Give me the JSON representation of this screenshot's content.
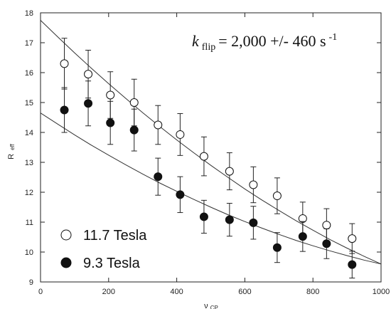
{
  "chart_data": {
    "type": "scatter",
    "title": "",
    "xlabel": "ν",
    "xlabel_sub": "CP",
    "ylabel": "R",
    "ylabel_sub": "eff",
    "xlim": [
      0,
      1000
    ],
    "ylim": [
      9,
      18
    ],
    "xticks": [
      0,
      200,
      400,
      600,
      800,
      1000
    ],
    "yticks": [
      9,
      10,
      11,
      12,
      13,
      14,
      15,
      16,
      17,
      18
    ],
    "grid": false,
    "legend_position": "bottom-left",
    "annotation": {
      "k": "k",
      "sub": "flip",
      "text": "= 2,000 +/- 460 s",
      "sup": "-1"
    },
    "series": [
      {
        "name": "11.7 Tesla",
        "marker": "open-circle",
        "x": [
          70,
          140,
          205,
          275,
          345,
          410,
          480,
          555,
          625,
          695,
          770,
          840,
          915
        ],
        "y": [
          16.3,
          15.95,
          15.25,
          15.0,
          14.25,
          13.93,
          13.2,
          12.7,
          12.25,
          11.88,
          11.12,
          10.9,
          10.45
        ],
        "err": [
          0.85,
          0.8,
          0.78,
          0.78,
          0.65,
          0.7,
          0.65,
          0.62,
          0.6,
          0.6,
          0.55,
          0.55,
          0.5
        ],
        "fit_x": [
          0,
          50,
          100,
          150,
          200,
          250,
          300,
          350,
          400,
          450,
          500,
          550,
          600,
          650,
          700,
          750,
          800,
          850,
          900,
          950,
          1000
        ],
        "fit_y": [
          17.75,
          17.2,
          16.66,
          16.14,
          15.63,
          15.14,
          14.66,
          14.2,
          13.75,
          13.32,
          12.9,
          12.5,
          12.11,
          11.74,
          11.39,
          11.05,
          10.73,
          10.42,
          10.13,
          9.86,
          9.6
        ]
      },
      {
        "name": "9.3 Tesla",
        "marker": "filled-circle",
        "x": [
          70,
          140,
          205,
          275,
          345,
          410,
          480,
          555,
          625,
          695,
          770,
          840,
          915
        ],
        "y": [
          14.75,
          14.97,
          14.32,
          14.08,
          12.52,
          11.92,
          11.18,
          11.08,
          10.98,
          10.15,
          10.52,
          10.28,
          9.58
        ],
        "err": [
          0.75,
          0.75,
          0.72,
          0.7,
          0.62,
          0.6,
          0.55,
          0.55,
          0.55,
          0.5,
          0.5,
          0.5,
          0.45
        ],
        "fit_x": [
          0,
          50,
          100,
          150,
          200,
          250,
          300,
          350,
          400,
          450,
          500,
          550,
          600,
          650,
          700,
          750,
          800,
          850,
          900,
          950,
          1000
        ],
        "fit_y": [
          14.65,
          14.28,
          13.92,
          13.57,
          13.24,
          12.92,
          12.61,
          12.31,
          12.03,
          11.76,
          11.5,
          11.25,
          11.02,
          10.8,
          10.59,
          10.39,
          10.21,
          10.04,
          9.88,
          9.73,
          9.6
        ]
      }
    ]
  }
}
